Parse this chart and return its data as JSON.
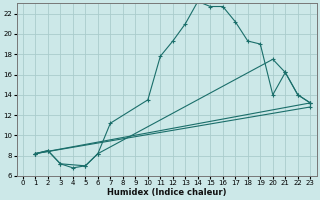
{
  "xlabel": "Humidex (Indice chaleur)",
  "background_color": "#cce8e8",
  "grid_color": "#aacccc",
  "line_color": "#1a6e6a",
  "xlim": [
    -0.5,
    23.5
  ],
  "ylim": [
    6,
    23
  ],
  "yticks": [
    6,
    8,
    10,
    12,
    14,
    16,
    18,
    20,
    22
  ],
  "xticks": [
    0,
    1,
    2,
    3,
    4,
    5,
    6,
    7,
    8,
    9,
    10,
    11,
    12,
    13,
    14,
    15,
    16,
    17,
    18,
    19,
    20,
    21,
    22,
    23
  ],
  "line1_x": [
    1,
    2,
    3,
    4,
    5,
    6,
    7,
    10,
    11,
    12,
    13,
    14,
    15,
    16,
    17,
    18,
    19,
    20,
    21,
    22,
    23
  ],
  "line1_y": [
    8.2,
    8.5,
    7.2,
    6.8,
    7.0,
    8.2,
    11.2,
    13.5,
    17.8,
    19.3,
    21.0,
    23.2,
    22.7,
    22.7,
    21.2,
    19.3,
    19.0,
    14.0,
    16.2,
    14.0,
    13.2
  ],
  "line2_x": [
    1,
    2,
    3,
    5,
    6,
    20,
    21,
    22,
    23
  ],
  "line2_y": [
    8.2,
    8.5,
    7.2,
    7.0,
    8.2,
    17.5,
    16.2,
    14.0,
    13.2
  ],
  "line3_x": [
    1,
    23
  ],
  "line3_y": [
    8.2,
    13.2
  ],
  "line4_x": [
    1,
    23
  ],
  "line4_y": [
    8.2,
    12.8
  ]
}
